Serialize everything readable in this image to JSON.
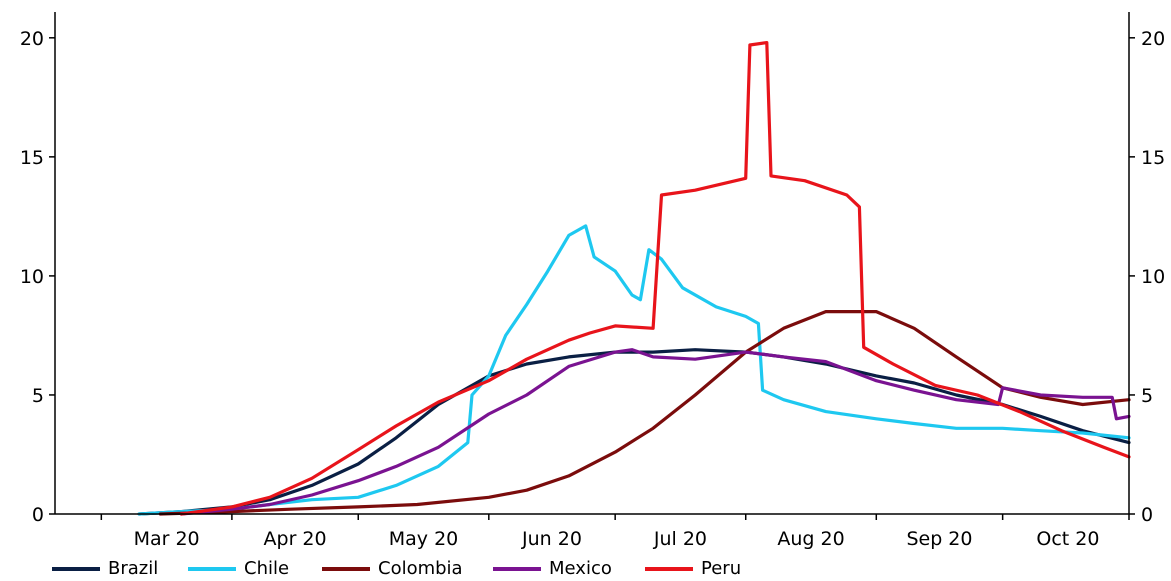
{
  "chart_data": {
    "type": "line",
    "x_categories": [
      "Mar 20",
      "Apr 20",
      "May 20",
      "Jun 20",
      "Jul 20",
      "Aug 20",
      "Sep 20",
      "Oct 20"
    ],
    "x_domain": [
      "2020-02-19",
      "2020-10-31"
    ],
    "ylim": [
      0,
      21
    ],
    "yticks_left": [
      "0",
      "5",
      "10",
      "15",
      "20"
    ],
    "yticks_right": [
      "0",
      "5",
      "10",
      "15",
      "20"
    ],
    "grid": false,
    "legend_position": "bottom",
    "series": [
      {
        "name": "Brazil",
        "color": "#0a1f44",
        "points": [
          [
            "2020-03-10",
            0
          ],
          [
            "2020-03-20",
            0.1
          ],
          [
            "2020-04-01",
            0.3
          ],
          [
            "2020-04-10",
            0.6
          ],
          [
            "2020-04-20",
            1.2
          ],
          [
            "2020-05-01",
            2.1
          ],
          [
            "2020-05-10",
            3.2
          ],
          [
            "2020-05-20",
            4.6
          ],
          [
            "2020-06-01",
            5.8
          ],
          [
            "2020-06-10",
            6.3
          ],
          [
            "2020-06-20",
            6.6
          ],
          [
            "2020-07-01",
            6.8
          ],
          [
            "2020-07-10",
            6.8
          ],
          [
            "2020-07-20",
            6.9
          ],
          [
            "2020-08-01",
            6.8
          ],
          [
            "2020-08-10",
            6.6
          ],
          [
            "2020-08-20",
            6.3
          ],
          [
            "2020-09-01",
            5.8
          ],
          [
            "2020-09-10",
            5.5
          ],
          [
            "2020-09-20",
            5.0
          ],
          [
            "2020-10-01",
            4.6
          ],
          [
            "2020-10-10",
            4.1
          ],
          [
            "2020-10-20",
            3.5
          ],
          [
            "2020-10-31",
            3.0
          ]
        ]
      },
      {
        "name": "Chile",
        "color": "#1ec8f0",
        "points": [
          [
            "2020-03-10",
            0
          ],
          [
            "2020-03-20",
            0.1
          ],
          [
            "2020-04-01",
            0.2
          ],
          [
            "2020-04-10",
            0.4
          ],
          [
            "2020-04-20",
            0.6
          ],
          [
            "2020-05-01",
            0.7
          ],
          [
            "2020-05-10",
            1.2
          ],
          [
            "2020-05-20",
            2.0
          ],
          [
            "2020-05-27",
            3.0
          ],
          [
            "2020-05-28",
            5.0
          ],
          [
            "2020-06-01",
            5.8
          ],
          [
            "2020-06-05",
            7.5
          ],
          [
            "2020-06-10",
            8.8
          ],
          [
            "2020-06-15",
            10.2
          ],
          [
            "2020-06-20",
            11.7
          ],
          [
            "2020-06-24",
            12.1
          ],
          [
            "2020-06-26",
            10.8
          ],
          [
            "2020-07-01",
            10.2
          ],
          [
            "2020-07-05",
            9.2
          ],
          [
            "2020-07-07",
            9.0
          ],
          [
            "2020-07-09",
            11.1
          ],
          [
            "2020-07-12",
            10.7
          ],
          [
            "2020-07-17",
            9.5
          ],
          [
            "2020-07-25",
            8.7
          ],
          [
            "2020-08-01",
            8.3
          ],
          [
            "2020-08-04",
            8.0
          ],
          [
            "2020-08-05",
            5.2
          ],
          [
            "2020-08-10",
            4.8
          ],
          [
            "2020-08-20",
            4.3
          ],
          [
            "2020-09-01",
            4.0
          ],
          [
            "2020-09-10",
            3.8
          ],
          [
            "2020-09-20",
            3.6
          ],
          [
            "2020-10-01",
            3.6
          ],
          [
            "2020-10-10",
            3.5
          ],
          [
            "2020-10-20",
            3.4
          ],
          [
            "2020-10-31",
            3.2
          ]
        ]
      },
      {
        "name": "Colombia",
        "color": "#7b0c0c",
        "points": [
          [
            "2020-03-15",
            0
          ],
          [
            "2020-04-01",
            0.1
          ],
          [
            "2020-04-15",
            0.2
          ],
          [
            "2020-05-01",
            0.3
          ],
          [
            "2020-05-15",
            0.4
          ],
          [
            "2020-06-01",
            0.7
          ],
          [
            "2020-06-10",
            1.0
          ],
          [
            "2020-06-20",
            1.6
          ],
          [
            "2020-07-01",
            2.6
          ],
          [
            "2020-07-10",
            3.6
          ],
          [
            "2020-07-20",
            5.0
          ],
          [
            "2020-08-01",
            6.8
          ],
          [
            "2020-08-10",
            7.8
          ],
          [
            "2020-08-20",
            8.5
          ],
          [
            "2020-09-01",
            8.5
          ],
          [
            "2020-09-10",
            7.8
          ],
          [
            "2020-09-20",
            6.6
          ],
          [
            "2020-10-01",
            5.3
          ],
          [
            "2020-10-10",
            4.9
          ],
          [
            "2020-10-20",
            4.6
          ],
          [
            "2020-10-31",
            4.8
          ]
        ]
      },
      {
        "name": "Mexico",
        "color": "#7a1391",
        "points": [
          [
            "2020-03-20",
            0
          ],
          [
            "2020-04-01",
            0.2
          ],
          [
            "2020-04-10",
            0.4
          ],
          [
            "2020-04-20",
            0.8
          ],
          [
            "2020-05-01",
            1.4
          ],
          [
            "2020-05-10",
            2.0
          ],
          [
            "2020-05-20",
            2.8
          ],
          [
            "2020-06-01",
            4.2
          ],
          [
            "2020-06-10",
            5.0
          ],
          [
            "2020-06-20",
            6.2
          ],
          [
            "2020-07-01",
            6.8
          ],
          [
            "2020-07-05",
            6.9
          ],
          [
            "2020-07-10",
            6.6
          ],
          [
            "2020-07-20",
            6.5
          ],
          [
            "2020-08-01",
            6.8
          ],
          [
            "2020-08-10",
            6.6
          ],
          [
            "2020-08-20",
            6.4
          ],
          [
            "2020-09-01",
            5.6
          ],
          [
            "2020-09-10",
            5.2
          ],
          [
            "2020-09-20",
            4.8
          ],
          [
            "2020-09-30",
            4.6
          ],
          [
            "2020-10-01",
            5.3
          ],
          [
            "2020-10-10",
            5.0
          ],
          [
            "2020-10-20",
            4.9
          ],
          [
            "2020-10-27",
            4.9
          ],
          [
            "2020-10-28",
            4.0
          ],
          [
            "2020-10-31",
            4.1
          ]
        ]
      },
      {
        "name": "Peru",
        "color": "#e8141b",
        "points": [
          [
            "2020-03-20",
            0
          ],
          [
            "2020-04-01",
            0.3
          ],
          [
            "2020-04-10",
            0.7
          ],
          [
            "2020-04-20",
            1.5
          ],
          [
            "2020-05-01",
            2.7
          ],
          [
            "2020-05-10",
            3.7
          ],
          [
            "2020-05-20",
            4.7
          ],
          [
            "2020-06-01",
            5.6
          ],
          [
            "2020-06-10",
            6.5
          ],
          [
            "2020-06-20",
            7.3
          ],
          [
            "2020-06-25",
            7.6
          ],
          [
            "2020-07-01",
            7.9
          ],
          [
            "2020-07-10",
            7.8
          ],
          [
            "2020-07-12",
            13.4
          ],
          [
            "2020-07-20",
            13.6
          ],
          [
            "2020-08-01",
            14.1
          ],
          [
            "2020-08-02",
            19.7
          ],
          [
            "2020-08-06",
            19.8
          ],
          [
            "2020-08-07",
            14.2
          ],
          [
            "2020-08-15",
            14.0
          ],
          [
            "2020-08-25",
            13.4
          ],
          [
            "2020-08-28",
            12.9
          ],
          [
            "2020-08-29",
            7.0
          ],
          [
            "2020-09-05",
            6.3
          ],
          [
            "2020-09-15",
            5.4
          ],
          [
            "2020-09-25",
            5.0
          ],
          [
            "2020-10-05",
            4.3
          ],
          [
            "2020-10-15",
            3.5
          ],
          [
            "2020-10-25",
            2.8
          ],
          [
            "2020-10-31",
            2.4
          ]
        ]
      }
    ]
  }
}
